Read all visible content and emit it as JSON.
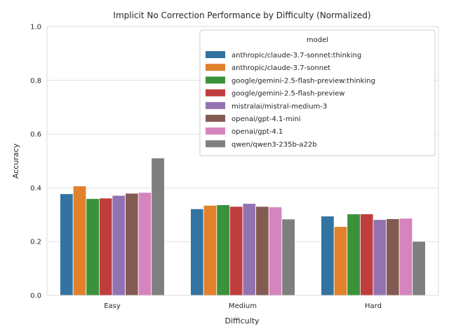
{
  "chart_data": {
    "type": "bar",
    "title": "Implicit No Correction Performance by Difficulty (Normalized)",
    "xlabel": "Difficulty",
    "ylabel": "Accuracy",
    "ylim": [
      0,
      1.0
    ],
    "yticks": [
      "0.0",
      "0.2",
      "0.4",
      "0.6",
      "0.8",
      "1.0"
    ],
    "categories": [
      "Easy",
      "Medium",
      "Hard"
    ],
    "grid": true,
    "legend": {
      "title": "model",
      "placement": "top-right"
    },
    "series": [
      {
        "name": "anthropic/claude-3.7-sonnet:thinking",
        "color": "#3274a1",
        "values": [
          0.378,
          0.322,
          0.295
        ]
      },
      {
        "name": "anthropic/claude-3.7-sonnet",
        "color": "#e1812c",
        "values": [
          0.407,
          0.335,
          0.256
        ]
      },
      {
        "name": "google/gemini-2.5-flash-preview:thinking",
        "color": "#3a923a",
        "values": [
          0.36,
          0.337,
          0.303
        ]
      },
      {
        "name": "google/gemini-2.5-flash-preview",
        "color": "#c03d3e",
        "values": [
          0.362,
          0.331,
          0.303
        ]
      },
      {
        "name": "mistralai/mistral-medium-3",
        "color": "#9372b2",
        "values": [
          0.372,
          0.342,
          0.282
        ]
      },
      {
        "name": "openai/gpt-4.1-mini",
        "color": "#845b53",
        "values": [
          0.38,
          0.331,
          0.285
        ]
      },
      {
        "name": "openai/gpt-4.1",
        "color": "#d684bd",
        "values": [
          0.383,
          0.329,
          0.287
        ]
      },
      {
        "name": "qwen/qwen3-235b-a22b",
        "color": "#7f7f7f",
        "values": [
          0.511,
          0.284,
          0.201
        ]
      }
    ]
  }
}
